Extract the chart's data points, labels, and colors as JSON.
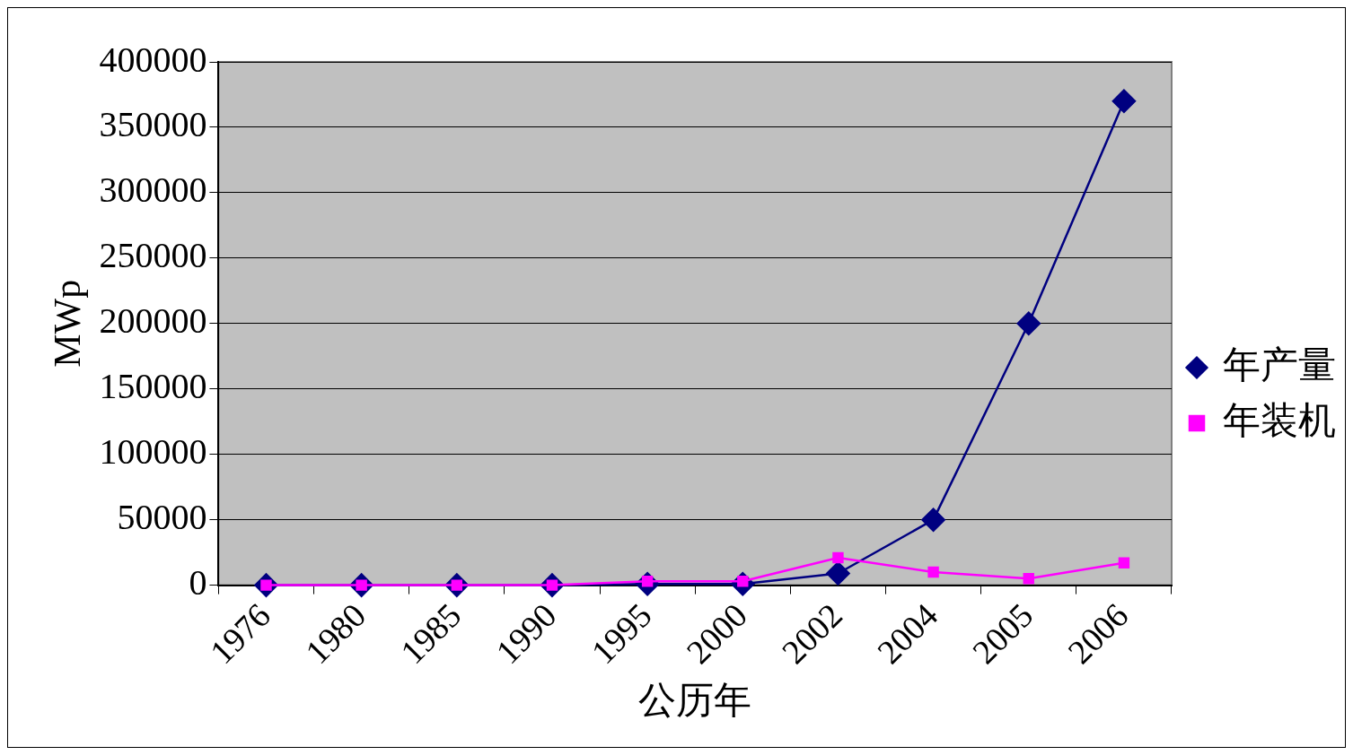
{
  "chart_data": {
    "type": "line",
    "xlabel": "公历年",
    "ylabel": "MWp",
    "categories": [
      "1976",
      "1980",
      "1985",
      "1990",
      "1995",
      "2000",
      "2002",
      "2004",
      "2005",
      "2006"
    ],
    "series": [
      {
        "name": "年产量",
        "color": "#000080",
        "marker": "diamond",
        "values": [
          0,
          0,
          0,
          0,
          1000,
          1000,
          9000,
          50000,
          200000,
          370000
        ]
      },
      {
        "name": "年装机",
        "color": "#ff00ff",
        "marker": "square",
        "values": [
          0,
          0,
          0,
          0,
          3000,
          3000,
          21000,
          10000,
          5000,
          17000
        ]
      }
    ],
    "ylim": [
      0,
      400000
    ],
    "yticks": [
      0,
      50000,
      100000,
      150000,
      200000,
      250000,
      300000,
      350000,
      400000
    ],
    "grid": "y",
    "legend": "right",
    "line_style": "solid"
  }
}
